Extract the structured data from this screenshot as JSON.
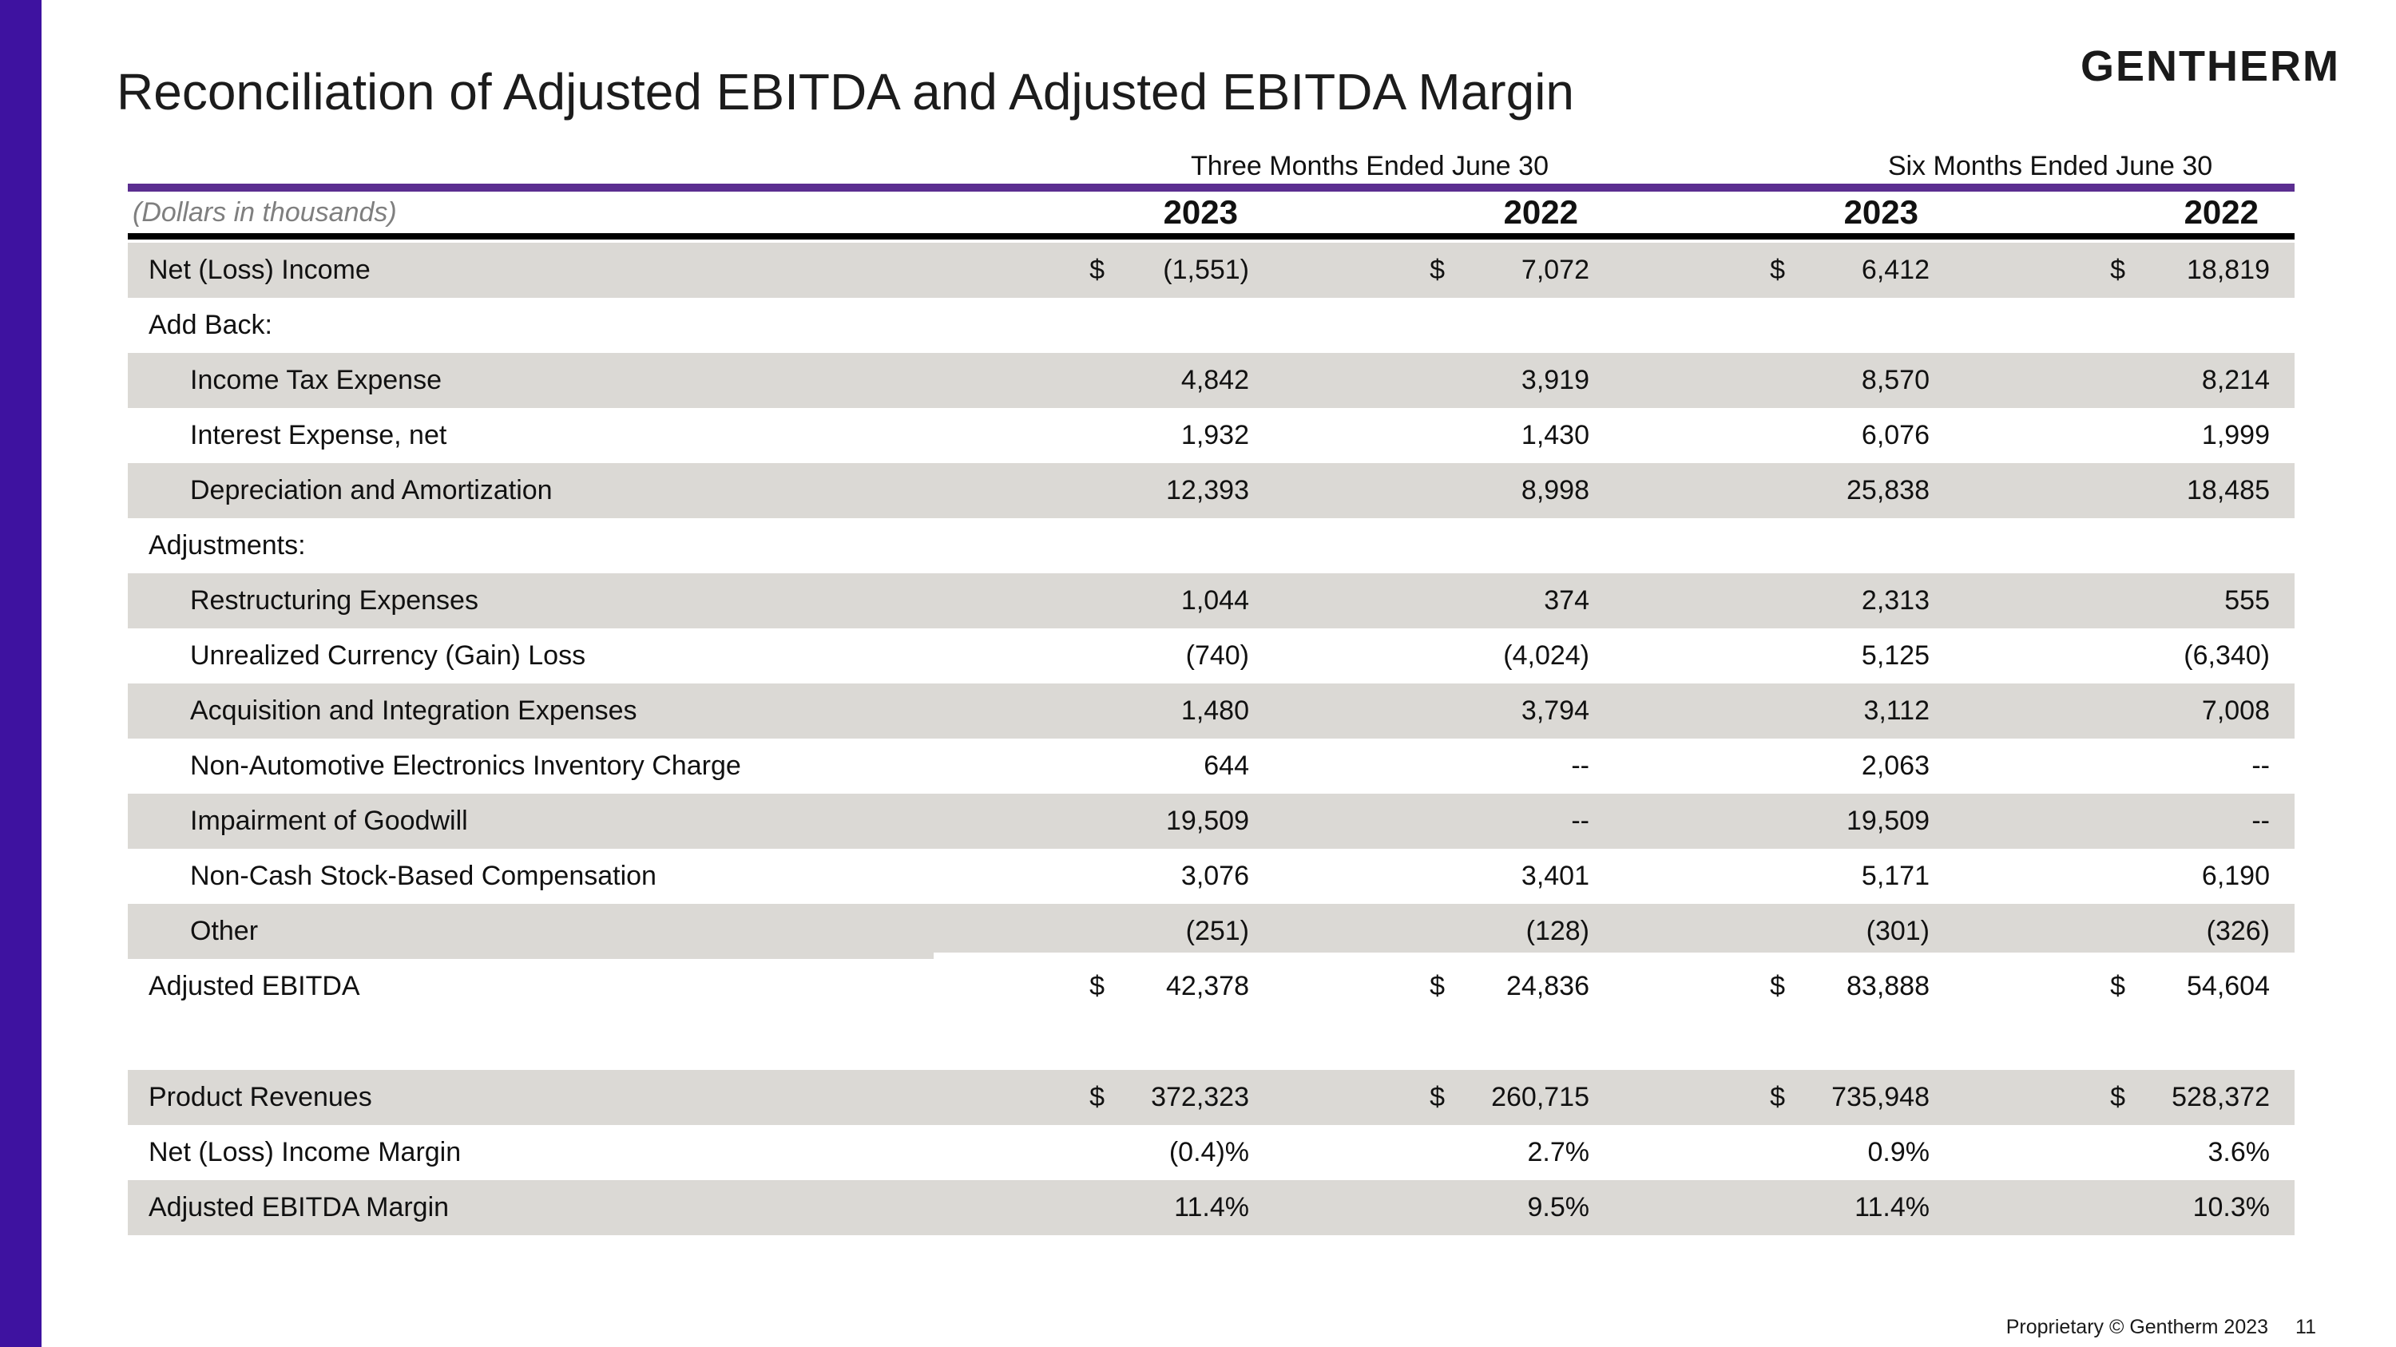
{
  "slide": {
    "title": "Reconciliation of Adjusted EBITDA and Adjusted EBITDA Margin",
    "logo": "GENTHERM",
    "footer": "Proprietary © Gentherm 2023",
    "page_number": "11"
  },
  "colors": {
    "accent_purple": "#3E12A0",
    "rule_purple": "#5B2E90",
    "row_shade": "#DBD9D5",
    "total_underline": "#DCDCDC"
  },
  "table": {
    "note": "(Dollars in thousands)",
    "col_groups": [
      "Three Months Ended June 30",
      "Six Months Ended June 30"
    ],
    "years": [
      "2023",
      "2022",
      "2023",
      "2022"
    ],
    "rows": [
      {
        "label": "Net (Loss) Income",
        "indent": 0,
        "shaded": true,
        "currency": true,
        "values": [
          "(1,551)",
          "7,072",
          "6,412",
          "18,819"
        ]
      },
      {
        "label": "Add Back:",
        "indent": 0,
        "shaded": false,
        "section": true,
        "values": []
      },
      {
        "label": "Income Tax Expense",
        "indent": 1,
        "shaded": true,
        "values": [
          "4,842",
          "3,919",
          "8,570",
          "8,214"
        ]
      },
      {
        "label": "Interest Expense, net",
        "indent": 1,
        "shaded": false,
        "values": [
          "1,932",
          "1,430",
          "6,076",
          "1,999"
        ]
      },
      {
        "label": "Depreciation and Amortization",
        "indent": 1,
        "shaded": true,
        "values": [
          "12,393",
          "8,998",
          "25,838",
          "18,485"
        ]
      },
      {
        "label": "Adjustments:",
        "indent": 0,
        "shaded": false,
        "section": true,
        "values": []
      },
      {
        "label": "Restructuring Expenses",
        "indent": 1,
        "shaded": true,
        "values": [
          "1,044",
          "374",
          "2,313",
          "555"
        ]
      },
      {
        "label": "Unrealized Currency (Gain) Loss",
        "indent": 1,
        "shaded": false,
        "values": [
          "(740)",
          "(4,024)",
          "5,125",
          "(6,340)"
        ]
      },
      {
        "label": "Acquisition and Integration Expenses",
        "indent": 1,
        "shaded": true,
        "values": [
          "1,480",
          "3,794",
          "3,112",
          "7,008"
        ]
      },
      {
        "label": "Non-Automotive Electronics Inventory Charge",
        "indent": 1,
        "shaded": false,
        "values": [
          "644",
          "--",
          "2,063",
          "--"
        ]
      },
      {
        "label": "Impairment of Goodwill",
        "indent": 1,
        "shaded": true,
        "values": [
          "19,509",
          "--",
          "19,509",
          "--"
        ]
      },
      {
        "label": "Non-Cash Stock-Based Compensation",
        "indent": 1,
        "shaded": false,
        "values": [
          "3,076",
          "3,401",
          "5,171",
          "6,190"
        ]
      },
      {
        "label": "Other",
        "indent": 1,
        "shaded": true,
        "values": [
          "(251)",
          "(128)",
          "(301)",
          "(326)"
        ]
      },
      {
        "label": "Adjusted EBITDA",
        "indent": 0,
        "shaded": false,
        "currency": true,
        "total": true,
        "values": [
          "42,378",
          "24,836",
          "83,888",
          "54,604"
        ]
      },
      {
        "spacer": true
      },
      {
        "label": "Product Revenues",
        "indent": 0,
        "shaded": true,
        "currency": true,
        "values": [
          "372,323",
          "260,715",
          "735,948",
          "528,372"
        ]
      },
      {
        "label": "Net (Loss) Income Margin",
        "indent": 0,
        "shaded": false,
        "values": [
          "(0.4)%",
          "2.7%",
          "0.9%",
          "3.6%"
        ]
      },
      {
        "label": "Adjusted EBITDA Margin",
        "indent": 0,
        "shaded": true,
        "values": [
          "11.4%",
          "9.5%",
          "11.4%",
          "10.3%"
        ]
      }
    ]
  }
}
